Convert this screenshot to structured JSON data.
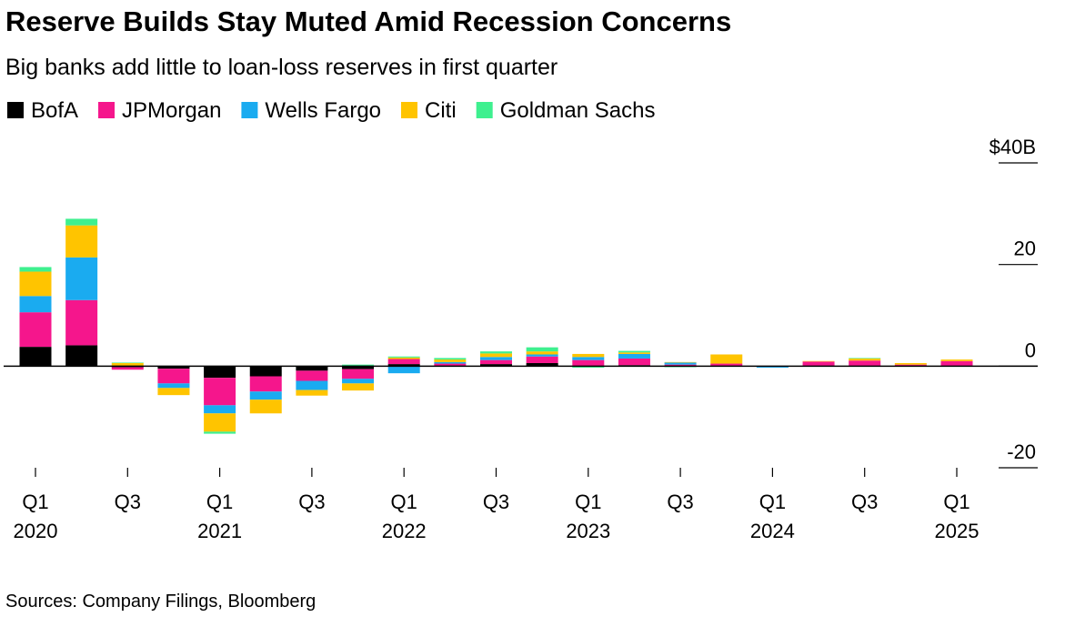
{
  "chart_data": {
    "type": "bar",
    "stacked": true,
    "title": "Reserve Builds Stay Muted Amid Recession Concerns",
    "subtitle": "Big banks add little to loan-loss reserves in first quarter",
    "source": "Sources: Company Filings, Bloomberg",
    "categories": [
      "Q1 2020",
      null,
      "Q3",
      null,
      "Q1 2021",
      null,
      "Q3",
      null,
      "Q1 2022",
      null,
      "Q3",
      null,
      "Q1 2023",
      null,
      "Q3",
      null,
      "Q1 2024",
      null,
      "Q3",
      null,
      "Q1 2025"
    ],
    "series": [
      {
        "name": "BofA",
        "color": "#000000",
        "values": [
          3.8,
          4.1,
          -0.2,
          -0.5,
          -2.3,
          -2.0,
          -0.9,
          -0.6,
          0.4,
          0.1,
          0.4,
          0.6,
          0.1,
          0.2,
          0.1,
          0.1,
          0,
          0.1,
          0.1,
          0.1,
          0.1
        ]
      },
      {
        "name": "JPMorgan",
        "color": "#f5168c",
        "values": [
          6.8,
          8.9,
          -0.5,
          -2.9,
          -5.4,
          -3.0,
          -2.0,
          -1.9,
          1.0,
          0.4,
          0.8,
          1.3,
          1.1,
          1.3,
          0.2,
          0.4,
          0,
          0.8,
          1.0,
          0.2,
          0.9
        ]
      },
      {
        "name": "Wells Fargo",
        "color": "#1aabf0",
        "values": [
          3.2,
          8.4,
          0,
          -0.9,
          -1.6,
          -1.6,
          -1.8,
          -0.9,
          -1.4,
          0.3,
          0.6,
          0.4,
          0.6,
          0.9,
          0.4,
          0,
          -0.3,
          0,
          0,
          0,
          0
        ]
      },
      {
        "name": "Citi",
        "color": "#ffc400",
        "values": [
          4.8,
          6.3,
          0.6,
          -1.4,
          -3.6,
          -2.7,
          -1.1,
          -1.4,
          0.3,
          0.5,
          0.7,
          0.6,
          0.6,
          0.3,
          0.1,
          1.8,
          0,
          0.1,
          0.4,
          0.3,
          0.3
        ]
      },
      {
        "name": "Goldman Sachs",
        "color": "#3ef08f",
        "values": [
          0.9,
          1.3,
          0.1,
          0,
          -0.4,
          0,
          0,
          0.3,
          0.2,
          0.3,
          0.4,
          0.8,
          -0.3,
          0.3,
          -0.2,
          0,
          0,
          0,
          0.1,
          0,
          0
        ]
      }
    ],
    "ylim": [
      -20,
      40
    ],
    "yticks": [
      -20,
      0,
      20,
      {
        "value": 40,
        "label": "$40B"
      }
    ],
    "legend": "top-left"
  }
}
